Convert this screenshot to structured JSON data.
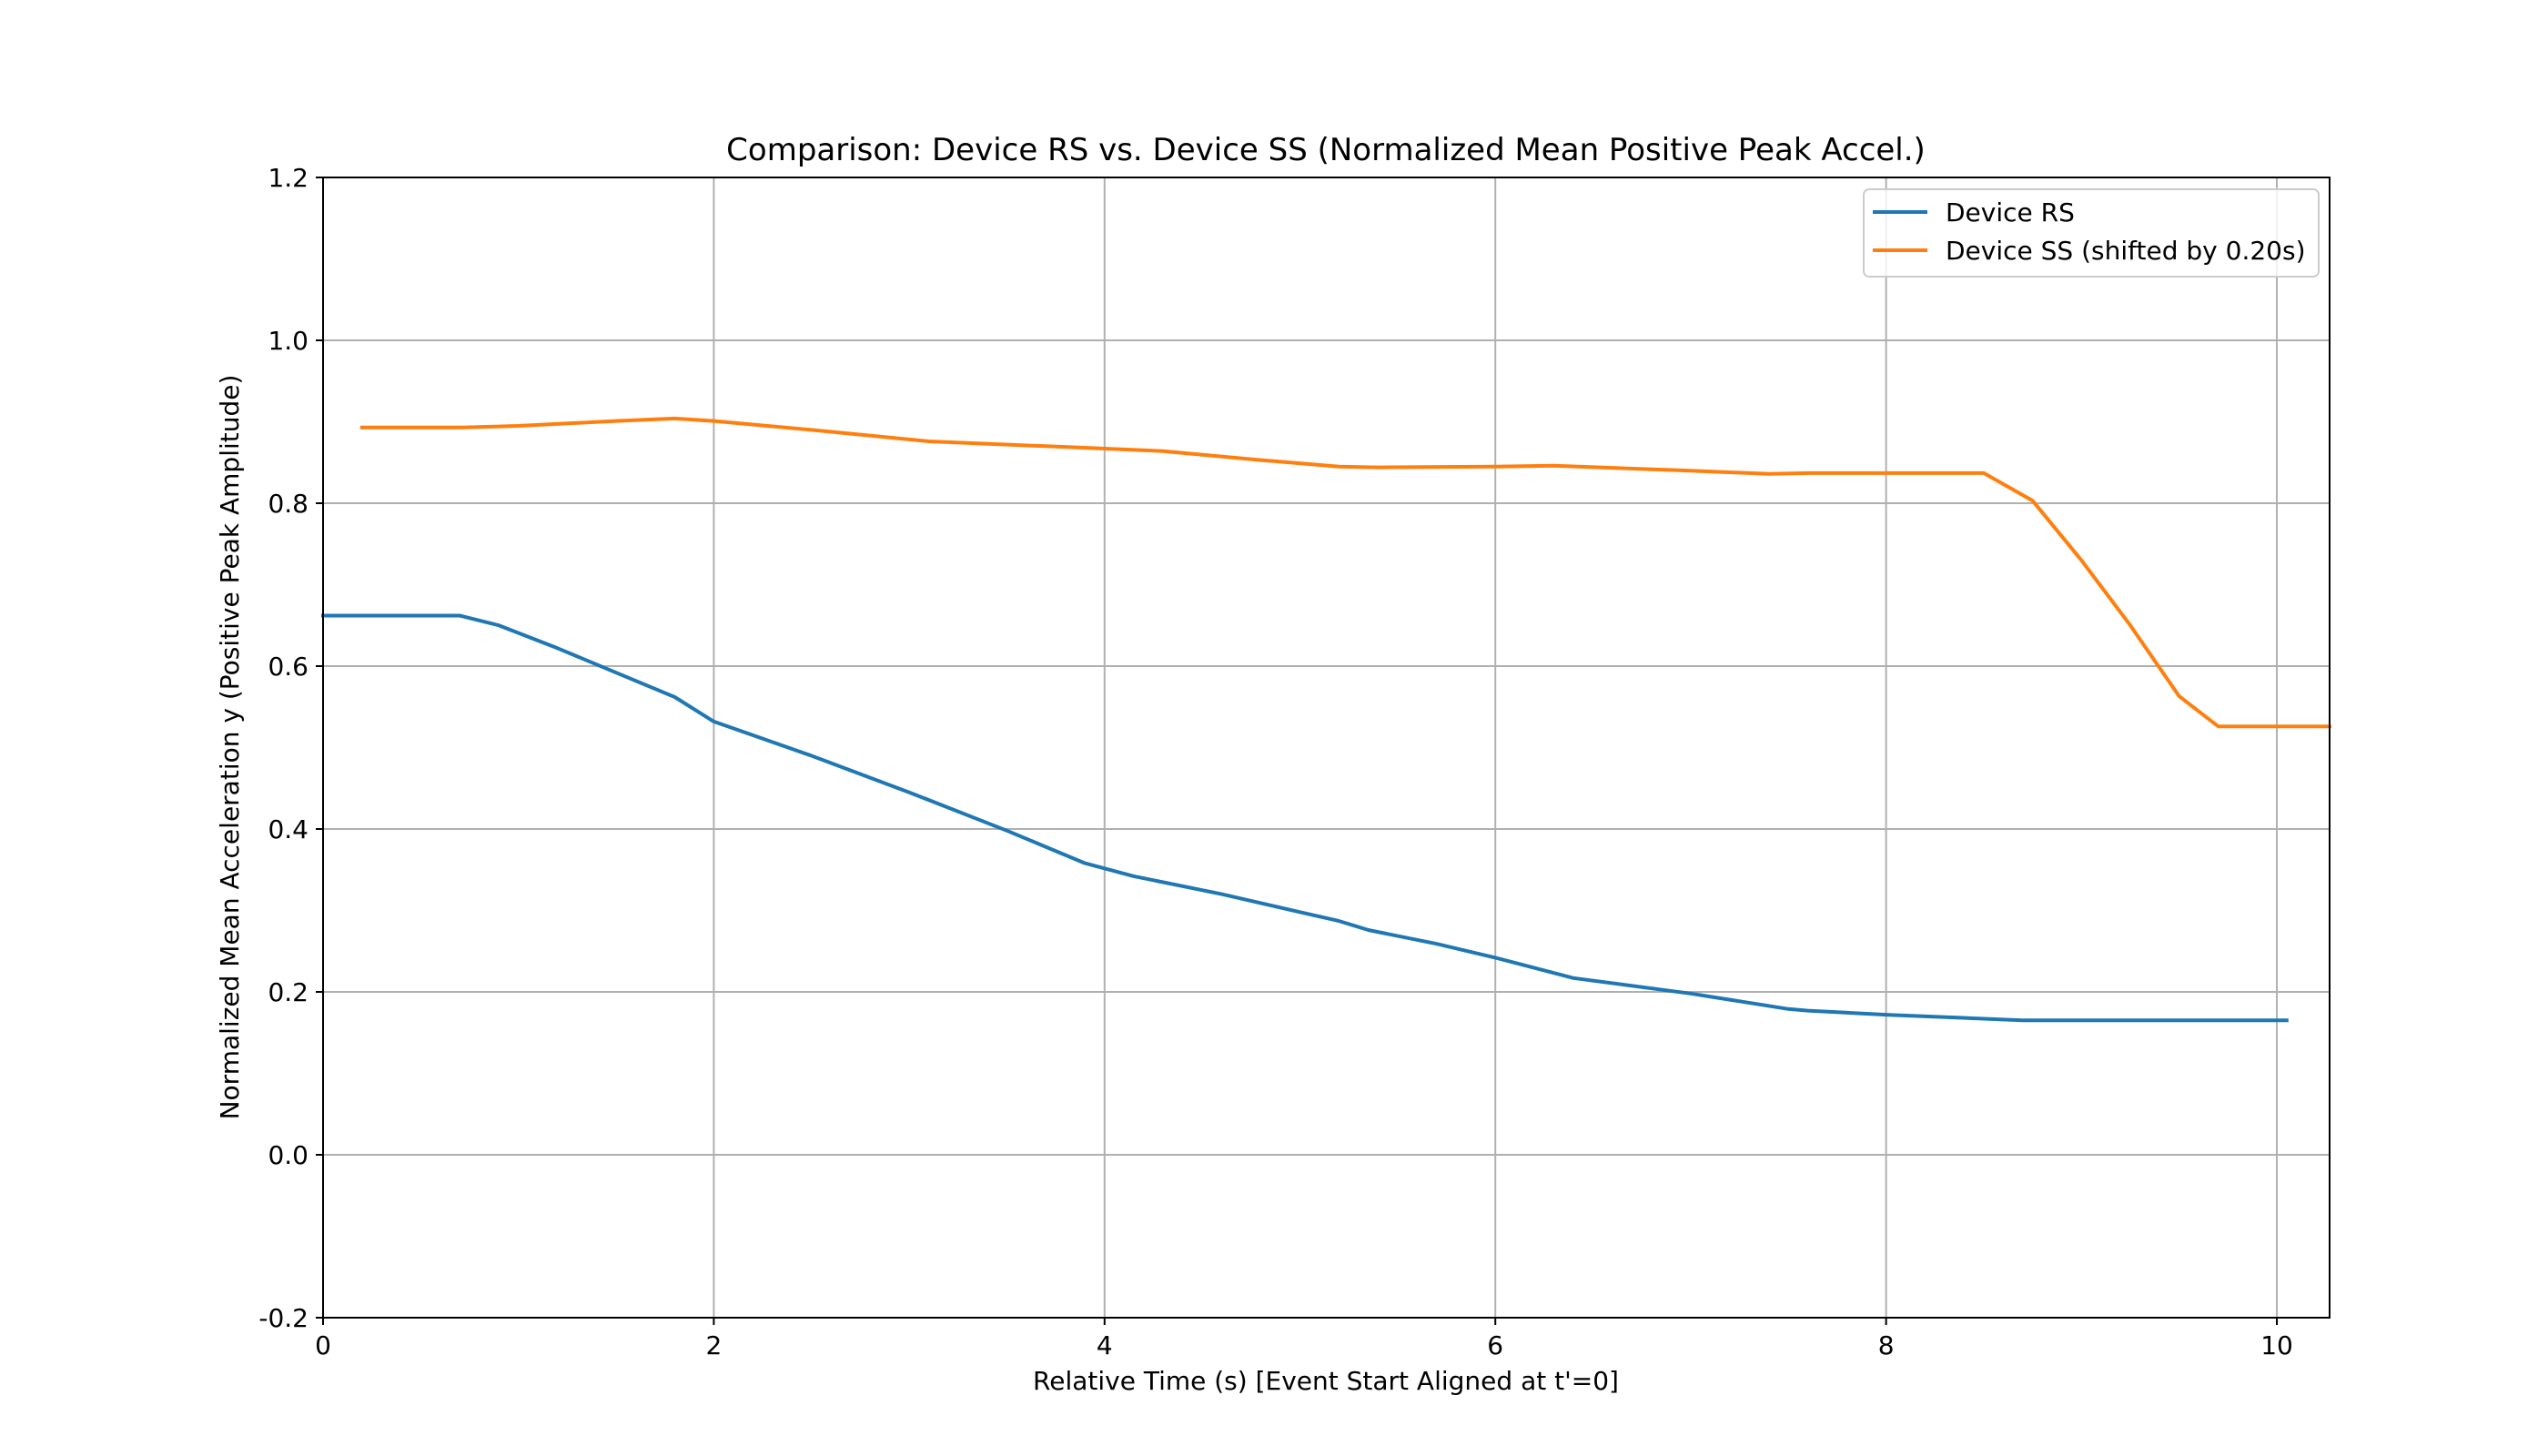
{
  "chart_data": {
    "type": "line",
    "title": "Comparison: Device RS vs. Device SS (Normalized Mean Positive Peak Accel.)",
    "xlabel": "Relative Time (s) [Event Start Aligned at t'=0]",
    "ylabel": "Normalized Mean Acceleration y (Positive Peak Amplitude)",
    "xlim": [
      0,
      10.27
    ],
    "ylim": [
      -0.2,
      1.2
    ],
    "xticks": [
      0,
      2,
      4,
      6,
      8,
      10
    ],
    "xtick_labels": [
      "0",
      "2",
      "4",
      "6",
      "8",
      "10"
    ],
    "yticks": [
      -0.2,
      0.0,
      0.2,
      0.4,
      0.6,
      0.8,
      1.0,
      1.2
    ],
    "ytick_labels": [
      "-0.2",
      "0.0",
      "0.2",
      "0.4",
      "0.6",
      "0.8",
      "1.0",
      "1.2"
    ],
    "grid": true,
    "legend": "upper right",
    "series": [
      {
        "name": "Device RS",
        "color": "#1f77b4",
        "x": [
          0,
          0.7,
          0.75,
          0.9,
          1.2,
          1.5,
          1.8,
          2.0,
          2.5,
          3.0,
          3.5,
          3.9,
          4.15,
          4.6,
          5.0,
          5.2,
          5.35,
          5.7,
          6.0,
          6.4,
          7.0,
          7.5,
          7.6,
          8.0,
          8.5,
          8.7,
          9.0,
          9.5,
          10.05
        ],
        "y": [
          0.662,
          0.662,
          0.659,
          0.65,
          0.622,
          0.592,
          0.562,
          0.532,
          0.49,
          0.445,
          0.398,
          0.358,
          0.342,
          0.32,
          0.298,
          0.287,
          0.276,
          0.259,
          0.242,
          0.217,
          0.198,
          0.179,
          0.177,
          0.172,
          0.167,
          0.165,
          0.165,
          0.165,
          0.165
        ]
      },
      {
        "name": "Device SS (shifted by 0.20s)",
        "color": "#ff7f0e",
        "x": [
          0.2,
          0.7,
          1.0,
          1.5,
          1.8,
          2.0,
          2.5,
          3.1,
          3.7,
          4.3,
          4.8,
          5.2,
          5.4,
          6.0,
          6.3,
          7.0,
          7.4,
          7.6,
          8.0,
          8.5,
          8.75,
          9.0,
          9.25,
          9.5,
          9.7,
          10.0,
          10.27
        ],
        "y": [
          0.893,
          0.893,
          0.895,
          0.901,
          0.904,
          0.901,
          0.89,
          0.876,
          0.87,
          0.864,
          0.853,
          0.845,
          0.844,
          0.845,
          0.846,
          0.84,
          0.836,
          0.837,
          0.837,
          0.837,
          0.803,
          0.73,
          0.65,
          0.563,
          0.526,
          0.526,
          0.526
        ]
      }
    ]
  }
}
